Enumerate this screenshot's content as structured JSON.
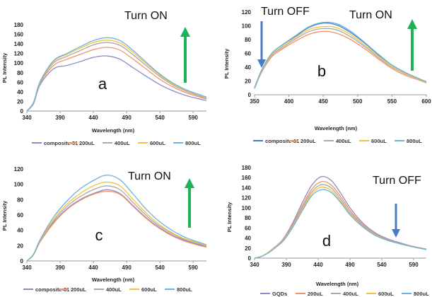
{
  "colors": {
    "series": [
      "#8e88c6",
      "#f0936a",
      "#a9a9a9",
      "#f5c33b",
      "#68b3e2"
    ],
    "series_b": [
      "#3f7bd0",
      "#f0936a",
      "#a9a9a9",
      "#f5c33b",
      "#68b3e2"
    ],
    "arrow_up": "#1fb05a",
    "arrow_down": "#4a7bc1"
  },
  "chart_data": [
    {
      "id": "a",
      "type": "line",
      "panel_label": "a",
      "annotation": "Turn ON",
      "arrow": "up",
      "xlabel": "Wavelength (nm)",
      "ylabel": "PL Intensity",
      "xlim": [
        340,
        610
      ],
      "ylim": [
        0,
        180
      ],
      "xticks": [
        340,
        390,
        440,
        490,
        540,
        590
      ],
      "yticks": [
        0,
        20,
        40,
        60,
        80,
        100,
        120,
        140,
        160,
        180
      ],
      "grid": false,
      "legend": "bottom",
      "x": [
        340,
        350,
        360,
        380,
        400,
        420,
        440,
        460,
        480,
        500,
        520,
        540,
        560,
        580,
        600,
        610
      ],
      "series": [
        {
          "name": "composite-51",
          "values": [
            0,
            15,
            55,
            88,
            95,
            103,
            112,
            115,
            108,
            90,
            72,
            55,
            42,
            32,
            25,
            22
          ]
        },
        {
          "name": "200uL",
          "values": [
            0,
            16,
            58,
            95,
            108,
            118,
            128,
            133,
            127,
            108,
            87,
            66,
            50,
            38,
            29,
            25
          ]
        },
        {
          "name": "400uL",
          "values": [
            0,
            17,
            60,
            100,
            114,
            126,
            138,
            143,
            137,
            117,
            94,
            72,
            54,
            41,
            31,
            27
          ]
        },
        {
          "name": "600uL",
          "values": [
            0,
            17,
            61,
            103,
            118,
            131,
            143,
            148,
            142,
            122,
            98,
            75,
            56,
            43,
            33,
            28
          ]
        },
        {
          "name": "800uL",
          "values": [
            0,
            18,
            62,
            105,
            120,
            134,
            147,
            153,
            147,
            126,
            101,
            77,
            58,
            44,
            34,
            29
          ]
        }
      ]
    },
    {
      "id": "b",
      "type": "line",
      "panel_label": "b",
      "annotation": "Turn ON",
      "annotation2": "Turn OFF",
      "arrow": "both",
      "xlabel": "Wavelength (nm)",
      "ylabel": "PL Intensity",
      "xlim": [
        350,
        600
      ],
      "ylim": [
        0,
        120
      ],
      "xticks": [
        350,
        400,
        450,
        500,
        550,
        600
      ],
      "yticks": [
        0,
        20,
        40,
        60,
        80,
        100,
        120
      ],
      "grid": false,
      "legend": "bottom",
      "x": [
        350,
        360,
        375,
        390,
        410,
        430,
        450,
        470,
        490,
        510,
        530,
        550,
        570,
        590,
        600
      ],
      "series": [
        {
          "name": "composite-81",
          "values": [
            10,
            35,
            60,
            72,
            85,
            98,
            104,
            101,
            90,
            75,
            58,
            43,
            32,
            23,
            19
          ]
        },
        {
          "name": "200uL",
          "values": [
            9,
            32,
            55,
            66,
            78,
            88,
            92,
            89,
            80,
            67,
            52,
            38,
            28,
            21,
            17
          ]
        },
        {
          "name": "400uL",
          "values": [
            9,
            33,
            57,
            68,
            81,
            92,
            96,
            94,
            84,
            70,
            54,
            40,
            30,
            22,
            18
          ]
        },
        {
          "name": "600uL",
          "values": [
            10,
            34,
            58,
            70,
            83,
            95,
            99,
            97,
            87,
            72,
            56,
            41,
            31,
            22,
            18
          ]
        },
        {
          "name": "800uL",
          "values": [
            10,
            35,
            60,
            72,
            86,
            99,
            105,
            103,
            92,
            76,
            59,
            43,
            32,
            23,
            19
          ]
        }
      ]
    },
    {
      "id": "c",
      "type": "line",
      "panel_label": "c",
      "annotation": "Turn ON",
      "arrow": "up",
      "xlabel": "Wavelength (nm)",
      "ylabel": "PL Intensity",
      "xlim": [
        340,
        610
      ],
      "ylim": [
        0,
        120
      ],
      "xticks": [
        340,
        390,
        440,
        490,
        540,
        590
      ],
      "yticks": [
        0,
        20,
        40,
        60,
        80,
        100,
        120
      ],
      "grid": false,
      "legend": "bottom",
      "x": [
        340,
        350,
        360,
        380,
        400,
        420,
        440,
        460,
        480,
        500,
        520,
        540,
        560,
        580,
        600,
        610
      ],
      "series": [
        {
          "name": "composite-81",
          "values": [
            0,
            8,
            25,
            50,
            68,
            80,
            88,
            93,
            88,
            72,
            56,
            43,
            33,
            26,
            21,
            19
          ]
        },
        {
          "name": "200uL",
          "values": [
            0,
            8,
            25,
            49,
            67,
            79,
            87,
            91,
            87,
            71,
            55,
            42,
            32,
            25,
            20,
            18
          ]
        },
        {
          "name": "400uL",
          "values": [
            0,
            8,
            26,
            52,
            71,
            84,
            93,
            98,
            93,
            76,
            59,
            45,
            35,
            27,
            22,
            20
          ]
        },
        {
          "name": "600uL",
          "values": [
            0,
            8,
            27,
            54,
            74,
            88,
            98,
            103,
            98,
            80,
            62,
            47,
            36,
            28,
            23,
            20
          ]
        },
        {
          "name": "800uL",
          "values": [
            0,
            9,
            28,
            57,
            78,
            94,
            105,
            112,
            106,
            87,
            67,
            51,
            39,
            30,
            24,
            21
          ]
        }
      ]
    },
    {
      "id": "d",
      "type": "line",
      "panel_label": "d",
      "annotation": "Turn OFF",
      "arrow": "down",
      "xlabel": "Wavelength (nm)",
      "ylabel": "PL Intensity",
      "xlim": [
        340,
        610
      ],
      "ylim": [
        0,
        180
      ],
      "xticks": [
        340,
        390,
        440,
        490,
        540,
        590
      ],
      "yticks": [
        0,
        20,
        40,
        60,
        80,
        100,
        120,
        140,
        160,
        180
      ],
      "grid": false,
      "legend": "bottom",
      "x": [
        340,
        350,
        360,
        370,
        385,
        400,
        415,
        430,
        445,
        460,
        475,
        490,
        510,
        530,
        550,
        570,
        590,
        610
      ],
      "series": [
        {
          "name": "GQDs",
          "values": [
            0,
            3,
            10,
            20,
            38,
            70,
            110,
            145,
            162,
            155,
            130,
            100,
            70,
            50,
            38,
            30,
            23,
            18
          ]
        },
        {
          "name": "200uL",
          "values": [
            0,
            3,
            10,
            20,
            37,
            67,
            104,
            137,
            152,
            146,
            123,
            95,
            67,
            48,
            37,
            29,
            23,
            18
          ]
        },
        {
          "name": "400uL",
          "values": [
            0,
            3,
            10,
            19,
            36,
            65,
            100,
            132,
            146,
            140,
            118,
            91,
            65,
            47,
            36,
            29,
            22,
            18
          ]
        },
        {
          "name": "600uL",
          "values": [
            0,
            3,
            10,
            19,
            35,
            63,
            97,
            128,
            141,
            135,
            114,
            88,
            63,
            46,
            35,
            28,
            22,
            17
          ]
        },
        {
          "name": "800uL",
          "values": [
            0,
            3,
            9,
            18,
            34,
            61,
            94,
            124,
            136,
            131,
            111,
            86,
            62,
            45,
            35,
            28,
            22,
            17
          ]
        }
      ]
    }
  ]
}
